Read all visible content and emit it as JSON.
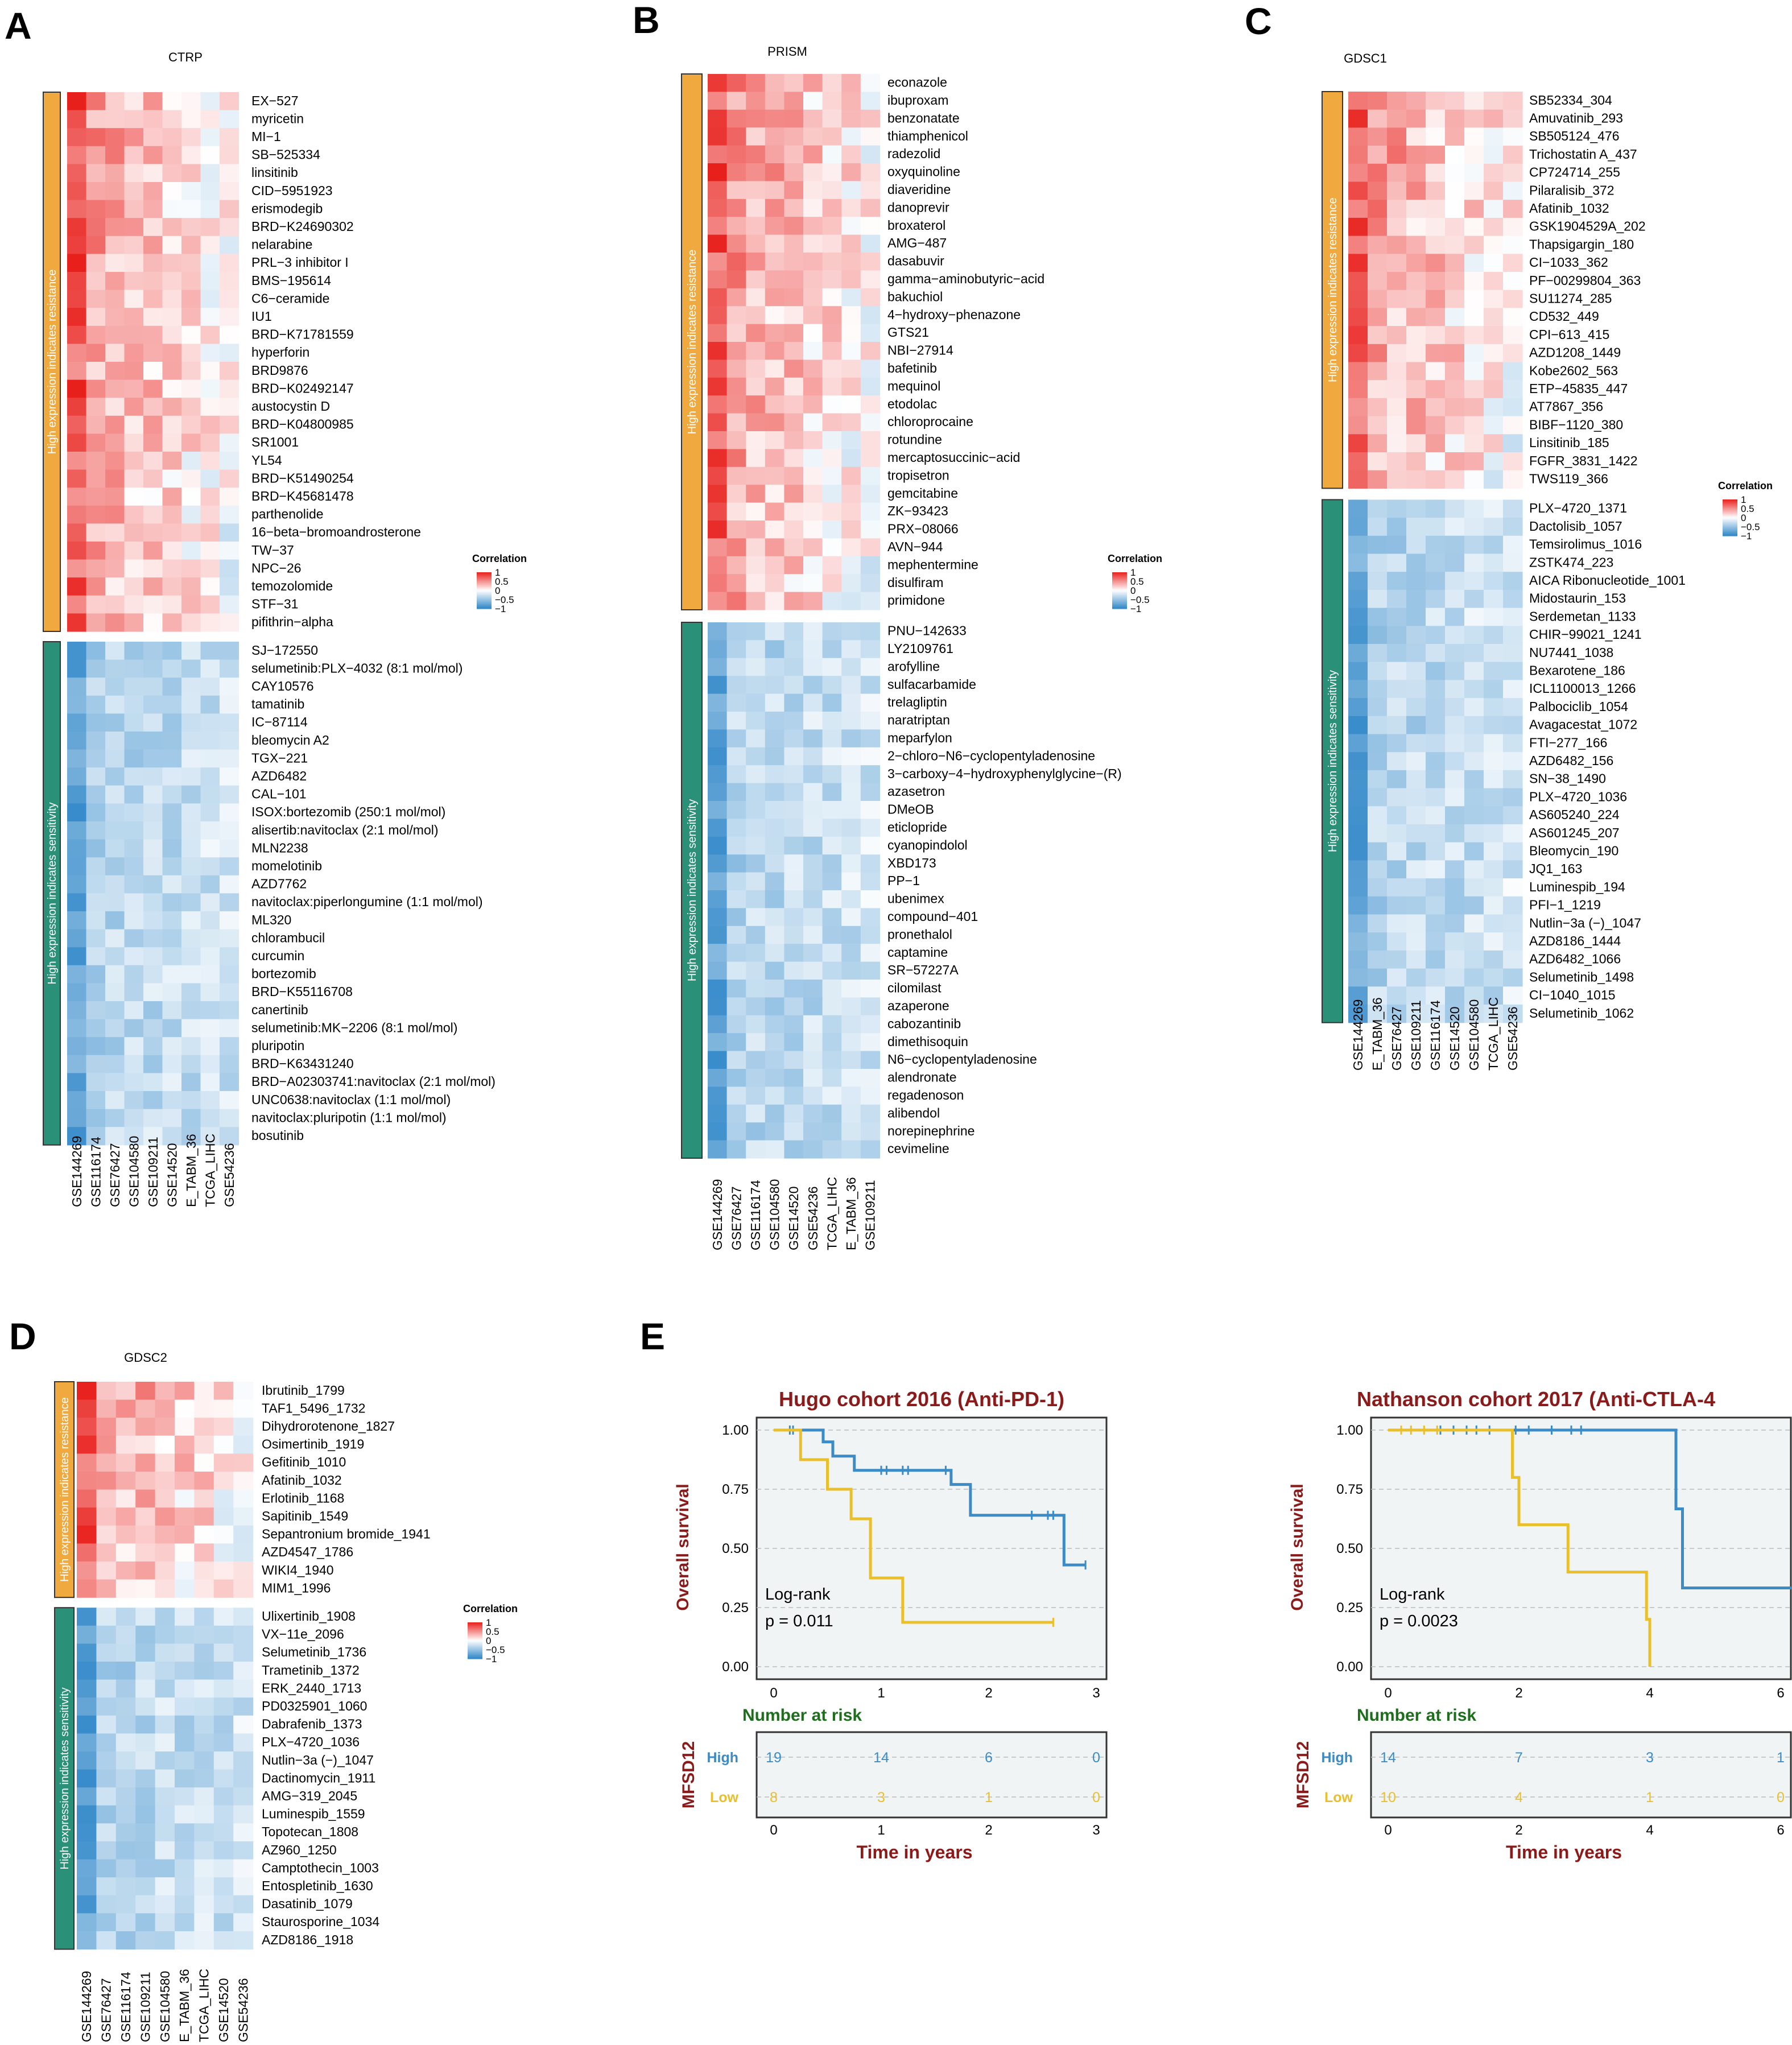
{
  "panels": {
    "A": {
      "letter": "A"
    },
    "B": {
      "letter": "B"
    },
    "C": {
      "letter": "C"
    },
    "D": {
      "letter": "D"
    },
    "E": {
      "letter": "E"
    }
  },
  "legend": {
    "title": "Correlation",
    "ticks": [
      "1",
      "0.5",
      "0",
      "−0.5",
      "−1"
    ]
  },
  "colors": {
    "resistance_bar": "#F0A93F",
    "sensitivity_bar": "#2A9078",
    "positive": "#E8201C",
    "negative": "#2E86C8",
    "high_group": "#3B8BC7",
    "low_group": "#E9BF2C",
    "km_title": "#8B1A1A",
    "risk_title": "#1E6E1E"
  },
  "chart_data": [
    {
      "type": "heatmap",
      "panel": "A",
      "title": "CTRP",
      "resistance_label": "High expression indicates resistance",
      "sensitivity_label": "High expression indicates sensitivity",
      "columns": [
        "GSE144269",
        "GSE116174",
        "GSE76427",
        "GSE104580",
        "GSE109211",
        "GSE14520",
        "E_TABM_36",
        "TCGA_LIHC",
        "GSE54236"
      ],
      "resistance_drugs": [
        "EX−527",
        "myricetin",
        "MI−1",
        "SB−525334",
        "linsitinib",
        "CID−5951923",
        "erismodegib",
        "BRD−K24690302",
        "nelarabine",
        "PRL−3 inhibitor I",
        "BMS−195614",
        "C6−ceramide",
        "IU1",
        "BRD−K71781559",
        "hyperforin",
        "BRD9876",
        "BRD−K02492147",
        "austocystin D",
        "BRD−K04800985",
        "SR1001",
        "YL54",
        "BRD−K51490254",
        "BRD−K45681478",
        "parthenolide",
        "16−beta−bromoandrosterone",
        "TW−37",
        "NPC−26",
        "temozolomide",
        "STF−31",
        "pifithrin−alpha"
      ],
      "sensitivity_drugs": [
        "SJ−172550",
        "selumetinib:PLX−4032 (8:1 mol/mol)",
        "CAY10576",
        "tamatinib",
        "IC−87114",
        "bleomycin A2",
        "TGX−221",
        "AZD6482",
        "CAL−101",
        "ISOX:bortezomib (250:1 mol/mol)",
        "alisertib:navitoclax (2:1 mol/mol)",
        "MLN2238",
        "momelotinib",
        "AZD7762",
        "navitoclax:piperlongumine (1:1 mol/mol)",
        "ML320",
        "chlorambucil",
        "curcumin",
        "bortezomib",
        "BRD−K55116708",
        "canertinib",
        "selumetinib:MK−2206 (8:1 mol/mol)",
        "pluripotin",
        "BRD−K63431240",
        "BRD−A02303741:navitoclax (2:1 mol/mol)",
        "UNC0638:navitoclax (1:1 mol/mol)",
        "navitoclax:pluripotin (1:1 mol/mol)",
        "bosutinib"
      ],
      "value_range": [
        -1,
        1
      ]
    },
    {
      "type": "heatmap",
      "panel": "B",
      "title": "PRISM",
      "resistance_label": "High expression indicates resistance",
      "sensitivity_label": "High expression indicates sensitivity",
      "columns": [
        "GSE144269",
        "GSE76427",
        "GSE116174",
        "GSE104580",
        "GSE14520",
        "GSE54236",
        "TCGA_LIHC",
        "E_TABM_36",
        "GSE109211"
      ],
      "resistance_drugs": [
        "econazole",
        "ibuproxam",
        "benzonatate",
        "thiamphenicol",
        "radezolid",
        "oxyquinoline",
        "diaveridine",
        "danoprevir",
        "broxaterol",
        "AMG−487",
        "dasabuvir",
        "gamma−aminobutyric−acid",
        "bakuchiol",
        "4−hydroxy−phenazone",
        "GTS21",
        "NBI−27914",
        "bafetinib",
        "mequinol",
        "etodolac",
        "chloroprocaine",
        "rotundine",
        "mercaptosuccinic−acid",
        "tropisetron",
        "gemcitabine",
        "ZK−93423",
        "PRX−08066",
        "AVN−944",
        "mephentermine",
        "disulfiram",
        "primidone"
      ],
      "sensitivity_drugs": [
        "PNU−142633",
        "LY2109761",
        "arofylline",
        "sulfacarbamide",
        "trelagliptin",
        "naratriptan",
        "meparfylon",
        "2−chloro−N6−cyclopentyladenosine",
        "3−carboxy−4−hydroxyphenylglycine−(R)",
        "azasetron",
        "DMeOB",
        "eticlopride",
        "cyanopindolol",
        "XBD173",
        "PP−1",
        "ubenimex",
        "compound−401",
        "pronethalol",
        "captamine",
        "SR−57227A",
        "cilomilast",
        "azaperone",
        "cabozantinib",
        "dimethisoquin",
        "N6−cyclopentyladenosine",
        "alendronate",
        "regadenoson",
        "alibendol",
        "norepinephrine",
        "cevimeline"
      ],
      "value_range": [
        -1,
        1
      ]
    },
    {
      "type": "heatmap",
      "panel": "C",
      "title": "GDSC1",
      "resistance_label": "High expression indicates resistance",
      "sensitivity_label": "High expression indicates sensitivity",
      "columns": [
        "GSE144269",
        "E_TABM_36",
        "GSE76427",
        "GSE109211",
        "GSE116174",
        "GSE14520",
        "GSE104580",
        "TCGA_LIHC",
        "GSE54236"
      ],
      "resistance_drugs": [
        "SB52334_304",
        "Amuvatinib_293",
        "SB505124_476",
        "Trichostatin A_437",
        "CP724714_255",
        "Pilaralisib_372",
        "Afatinib_1032",
        "GSK1904529A_202",
        "Thapsigargin_180",
        "CI−1033_362",
        "PF−00299804_363",
        "SU11274_285",
        "CD532_449",
        "CPI−613_415",
        "AZD1208_1449",
        "Kobe2602_563",
        "ETP−45835_447",
        "AT7867_356",
        "BIBF−1120_380",
        "Linsitinib_185",
        "FGFR_3831_1422",
        "TWS119_366"
      ],
      "sensitivity_drugs": [
        "PLX−4720_1371",
        "Dactolisib_1057",
        "Temsirolimus_1016",
        "ZSTK474_223",
        "AICA Ribonucleotide_1001",
        "Midostaurin_153",
        "Serdemetan_1133",
        "CHIR−99021_1241",
        "NU7441_1038",
        "Bexarotene_186",
        "ICL1100013_1266",
        "Palbociclib_1054",
        "Avagacestat_1072",
        "FTI−277_166",
        "AZD6482_156",
        "SN−38_1490",
        "PLX−4720_1036",
        "AS605240_224",
        "AS601245_207",
        "Bleomycin_190",
        "JQ1_163",
        "Luminespib_194",
        "PFI−1_1219",
        "Nutlin−3a (−)_1047",
        "AZD8186_1444",
        "AZD6482_1066",
        "Selumetinib_1498",
        "CI−1040_1015",
        "Selumetinib_1062"
      ],
      "value_range": [
        -1,
        1
      ]
    },
    {
      "type": "heatmap",
      "panel": "D",
      "title": "GDSC2",
      "resistance_label": "High expression indicates resistance",
      "sensitivity_label": "High expression indicates sensitivity",
      "columns": [
        "GSE144269",
        "GSE76427",
        "GSE116174",
        "GSE109211",
        "GSE104580",
        "E_TABM_36",
        "TCGA_LIHC",
        "GSE14520",
        "GSE54236"
      ],
      "resistance_drugs": [
        "Ibrutinib_1799",
        "TAF1_5496_1732",
        "Dihydrorotenone_1827",
        "Osimertinib_1919",
        "Gefitinib_1010",
        "Afatinib_1032",
        "Erlotinib_1168",
        "Sapitinib_1549",
        "Sepantronium bromide_1941",
        "AZD4547_1786",
        "WIKI4_1940",
        "MIM1_1996"
      ],
      "sensitivity_drugs": [
        "Ulixertinib_1908",
        "VX−11e_2096",
        "Selumetinib_1736",
        "Trametinib_1372",
        "ERK_2440_1713",
        "PD0325901_1060",
        "Dabrafenib_1373",
        "PLX−4720_1036",
        "Nutlin−3a (−)_1047",
        "Dactinomycin_1911",
        "AMG−319_2045",
        "Luminespib_1559",
        "Topotecan_1808",
        "AZ960_1250",
        "Camptothecin_1003",
        "Entospletinib_1630",
        "Dasatinib_1079",
        "Staurosporine_1034",
        "AZD8186_1918"
      ],
      "value_range": [
        -1,
        1
      ]
    },
    {
      "type": "line",
      "panel": "E",
      "title": "Hugo cohort 2016 (Anti-PD-1)",
      "xlabel": "Time in years",
      "ylabel": "Overall survival",
      "xlim": [
        0,
        3
      ],
      "ylim": [
        0,
        1
      ],
      "xticks": [
        "0",
        "1",
        "2",
        "3"
      ],
      "yticks": [
        "1.00",
        "0.75",
        "0.50",
        "0.25",
        "0.00"
      ],
      "annotation": [
        "Log-rank",
        "p = 0.011"
      ],
      "series": [
        {
          "name": "High",
          "x": [
            0,
            0.46,
            0.55,
            0.75,
            1.65,
            1.83,
            2.7,
            2.9
          ],
          "y": [
            1.0,
            0.95,
            0.89,
            0.83,
            0.77,
            0.64,
            0.43,
            0.43
          ],
          "censor_x": [
            0.15,
            0.18,
            1.0,
            1.05,
            1.2,
            1.25,
            1.6,
            2.4,
            2.55,
            2.6,
            2.9
          ]
        },
        {
          "name": "Low",
          "x": [
            0,
            0.25,
            0.5,
            0.72,
            0.9,
            1.2,
            2.6
          ],
          "y": [
            1.0,
            0.875,
            0.75,
            0.625,
            0.375,
            0.1875,
            0.1875
          ],
          "censor_x": [
            2.6
          ]
        }
      ],
      "risk_table": {
        "title": "Number at risk",
        "ylabel": "MFSD12",
        "groups": [
          {
            "name": "High",
            "values": [
              "19",
              "14",
              "6",
              "0"
            ]
          },
          {
            "name": "Low",
            "values": [
              "8",
              "3",
              "1",
              "0"
            ]
          }
        ],
        "xticks": [
          "0",
          "1",
          "2",
          "3"
        ],
        "xlabel": "Time in years"
      }
    },
    {
      "type": "line",
      "panel": "E",
      "title": "Nathanson cohort 2017 (Anti-CTLA-4",
      "xlabel": "Time in years",
      "ylabel": "Overall survival",
      "xlim": [
        0,
        6
      ],
      "ylim": [
        0,
        1
      ],
      "xticks": [
        "0",
        "2",
        "4",
        "6"
      ],
      "yticks": [
        "1.00",
        "0.75",
        "0.50",
        "0.25",
        "0.00"
      ],
      "annotation": [
        "Log-rank",
        "p = 0.0023"
      ],
      "series": [
        {
          "name": "High",
          "x": [
            0,
            4.4,
            4.5,
            6.2
          ],
          "y": [
            1.0,
            0.667,
            0.333,
            0.333
          ],
          "censor_x": [
            0.8,
            1.0,
            1.2,
            1.35,
            1.55,
            1.95,
            2.15,
            2.5,
            2.8,
            2.95
          ]
        },
        {
          "name": "Low",
          "x": [
            0,
            1.9,
            2.0,
            2.75,
            3.95,
            4.0
          ],
          "y": [
            1.0,
            0.8,
            0.6,
            0.4,
            0.2,
            0.0
          ],
          "censor_x": [
            0.2,
            0.35,
            0.55,
            0.75
          ]
        }
      ],
      "risk_table": {
        "title": "Number at risk",
        "ylabel": "MFSD12",
        "groups": [
          {
            "name": "High",
            "values": [
              "14",
              "7",
              "3",
              "1"
            ]
          },
          {
            "name": "Low",
            "values": [
              "10",
              "4",
              "1",
              "0"
            ]
          }
        ],
        "xticks": [
          "0",
          "2",
          "4",
          "6"
        ],
        "xlabel": "Time in years"
      }
    }
  ]
}
